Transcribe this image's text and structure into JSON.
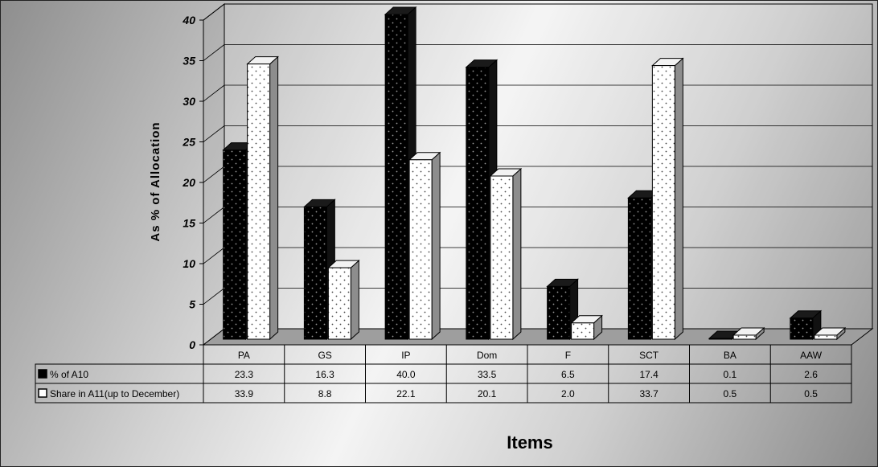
{
  "chart_data": {
    "type": "bar",
    "style": "3d-clustered-column-with-data-table",
    "categories": [
      "PA",
      "GS",
      "IP",
      "Dom",
      "F",
      "SCT",
      "BA",
      "AAW"
    ],
    "series": [
      {
        "name": "% of A10",
        "values": [
          23.3,
          16.3,
          40.0,
          33.5,
          6.5,
          17.4,
          0.1,
          2.6
        ],
        "display": [
          "23.3",
          "16.3",
          "40.0",
          "33.5",
          "6.5",
          "17.4",
          "0.1",
          "2.6"
        ],
        "fill": "#000000",
        "dots": "#9a9a9a"
      },
      {
        "name": "Share in A11(up to December)",
        "values": [
          33.9,
          8.8,
          22.1,
          20.1,
          2.0,
          33.7,
          0.5,
          0.5
        ],
        "display": [
          "33.9",
          "8.8",
          "22.1",
          "20.1",
          "2.0",
          "33.7",
          "0.5",
          "0.5"
        ],
        "fill": "#ffffff",
        "dots": "#444444"
      }
    ],
    "ylabel": "As % of Allocation",
    "xlabel": "Items",
    "ylim": [
      0,
      40
    ],
    "yticks": [
      "0",
      "5",
      "10",
      "15",
      "20",
      "25",
      "30",
      "35",
      "40"
    ],
    "grid": true,
    "legend": "data-table"
  }
}
